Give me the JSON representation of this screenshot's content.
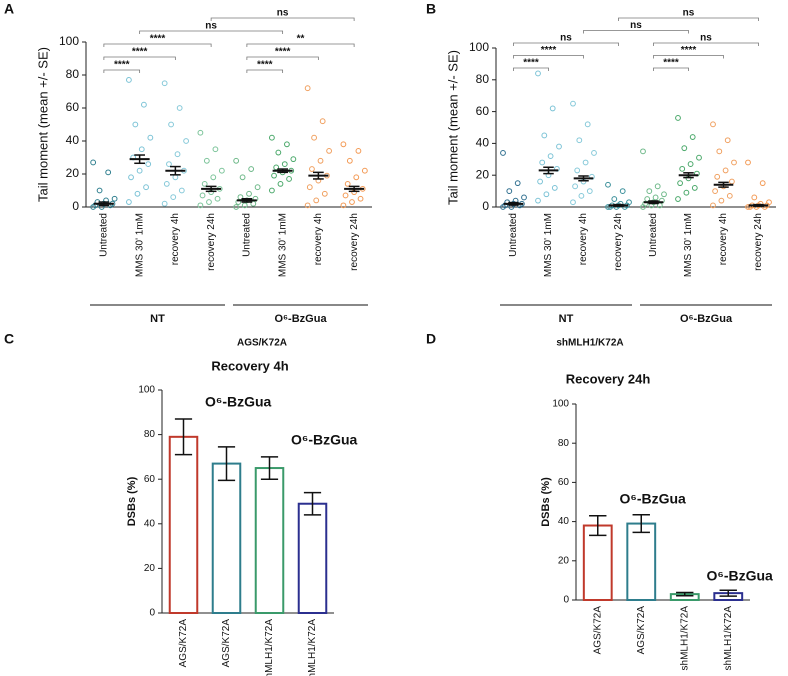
{
  "chart_data": [
    {
      "type": "strip",
      "panel": "A",
      "ylabel": "Tail moment (mean +/- SE)",
      "ylim": [
        0,
        100
      ],
      "yticks": [
        0,
        20,
        40,
        60,
        80,
        100
      ],
      "categories": [
        "Untreated",
        "MMS 30' 1mM",
        "recovery 4h",
        "recovery 24h",
        "Untreated",
        "MMS 30' 1mM",
        "recovery 4h",
        "recovery 24h"
      ],
      "colors": [
        "#2f7f8f",
        "#7cc3d6",
        "#86c9d9",
        "#7cc49a",
        "#6fb98a",
        "#4aa86a",
        "#f0a060",
        "#f39a55"
      ],
      "means": [
        2,
        29,
        22,
        11,
        4,
        22,
        19,
        11
      ],
      "errors": [
        1,
        2.5,
        2.5,
        1.5,
        1,
        1,
        2,
        1.5
      ],
      "points": [
        [
          0,
          0,
          1,
          1,
          2,
          2,
          3,
          4,
          5,
          10,
          21,
          27
        ],
        [
          3,
          8,
          12,
          18,
          22,
          26,
          30,
          35,
          42,
          50,
          62,
          77
        ],
        [
          2,
          6,
          10,
          14,
          18,
          22,
          26,
          32,
          40,
          50,
          60,
          75
        ],
        [
          1,
          3,
          5,
          7,
          9,
          11,
          14,
          18,
          22,
          28,
          35,
          45
        ],
        [
          0,
          1,
          2,
          3,
          4,
          5,
          6,
          8,
          12,
          18,
          23,
          28
        ],
        [
          10,
          14,
          17,
          19,
          21,
          22,
          24,
          26,
          29,
          33,
          38,
          42
        ],
        [
          1,
          4,
          8,
          12,
          16,
          19,
          23,
          28,
          34,
          42,
          52,
          72
        ],
        [
          1,
          3,
          5,
          7,
          9,
          11,
          14,
          18,
          22,
          28,
          34,
          38
        ]
      ],
      "groups": [
        {
          "label": "NT",
          "size": 4
        },
        {
          "label": "O⁶-BzGua",
          "size": 4
        }
      ],
      "comparisons": [
        {
          "from": 0,
          "to": 1,
          "label": "****"
        },
        {
          "from": 0,
          "to": 2,
          "label": "****"
        },
        {
          "from": 0,
          "to": 3,
          "label": "****"
        },
        {
          "from": 4,
          "to": 5,
          "label": "****"
        },
        {
          "from": 4,
          "to": 6,
          "label": "****"
        },
        {
          "from": 4,
          "to": 7,
          "label": "**"
        },
        {
          "from": 1,
          "to": 5,
          "label": "ns"
        },
        {
          "from": 3,
          "to": 7,
          "label": "ns"
        }
      ]
    },
    {
      "type": "strip",
      "panel": "B",
      "ylabel": "Tail moment (mean +/- SE)",
      "ylim": [
        0,
        100
      ],
      "yticks": [
        0,
        20,
        40,
        60,
        80,
        100
      ],
      "categories": [
        "Untreated",
        "MMS 30' 1mM",
        "recovery 4h",
        "recovery 24h",
        "Untreated",
        "MMS 30' 1mM",
        "recovery 4h",
        "recovery 24h"
      ],
      "colors": [
        "#2f6f8f",
        "#7cc3d6",
        "#86c9d9",
        "#3a8f9a",
        "#6fb98a",
        "#4aa86a",
        "#f0a060",
        "#f39a55"
      ],
      "means": [
        2,
        23,
        18,
        1,
        3,
        20,
        14,
        1
      ],
      "errors": [
        0.8,
        2,
        1.5,
        0.5,
        0.8,
        1.5,
        1.5,
        0.5
      ],
      "points": [
        [
          0,
          0,
          1,
          1,
          2,
          2,
          3,
          4,
          6,
          10,
          15,
          34
        ],
        [
          4,
          8,
          12,
          16,
          20,
          24,
          28,
          32,
          38,
          45,
          62,
          84
        ],
        [
          3,
          7,
          10,
          13,
          16,
          19,
          23,
          28,
          34,
          42,
          52,
          65
        ],
        [
          0,
          0,
          0,
          0,
          1,
          1,
          1,
          2,
          3,
          5,
          10,
          14
        ],
        [
          0,
          1,
          1,
          2,
          3,
          4,
          5,
          6,
          8,
          10,
          13,
          35
        ],
        [
          5,
          9,
          12,
          15,
          18,
          21,
          24,
          27,
          31,
          37,
          44,
          56
        ],
        [
          1,
          4,
          7,
          10,
          13,
          16,
          19,
          23,
          28,
          35,
          42,
          52
        ],
        [
          0,
          0,
          0,
          0,
          1,
          1,
          1,
          2,
          3,
          6,
          15,
          28
        ]
      ],
      "groups": [
        {
          "label": "NT",
          "size": 4
        },
        {
          "label": "O⁶-BzGua",
          "size": 4
        }
      ],
      "comparisons": [
        {
          "from": 0,
          "to": 1,
          "label": "****"
        },
        {
          "from": 0,
          "to": 2,
          "label": "****"
        },
        {
          "from": 0,
          "to": 3,
          "label": "ns"
        },
        {
          "from": 4,
          "to": 5,
          "label": "****"
        },
        {
          "from": 4,
          "to": 6,
          "label": "****"
        },
        {
          "from": 4,
          "to": 7,
          "label": "ns"
        },
        {
          "from": 2,
          "to": 5,
          "label": "ns"
        },
        {
          "from": 3,
          "to": 7,
          "label": "ns"
        }
      ]
    },
    {
      "type": "bar",
      "panel": "C",
      "header": "AGS/K72A",
      "title": "Recovery 4h",
      "ylabel": "DSBs (%)",
      "ylim": [
        0,
        100
      ],
      "yticks": [
        0,
        20,
        40,
        60,
        80,
        100
      ],
      "categories": [
        "AGS/K72A",
        "AGS/K72A",
        "shMLH1/K72A",
        "shMLH1/K72A"
      ],
      "values": [
        79,
        67,
        65,
        49
      ],
      "errors": [
        8,
        7.5,
        5,
        5
      ],
      "colors": [
        "#c0392b",
        "#2e7d8c",
        "#3a9a6a",
        "#2b2f8f"
      ],
      "annotations": [
        {
          "text": "O⁶-BzGua",
          "category": 0
        },
        {
          "text": "O⁶-BzGua",
          "category": 2
        }
      ]
    },
    {
      "type": "bar",
      "panel": "D",
      "header": "shMLH1/K72A",
      "title": "Recovery 24h",
      "ylabel": "DSBs (%)",
      "ylim": [
        0,
        100
      ],
      "yticks": [
        0,
        20,
        40,
        60,
        80,
        100
      ],
      "categories": [
        "AGS/K72A",
        "AGS/K72A",
        "shMLH1/K72A",
        "shMLH1/K72A"
      ],
      "values": [
        38,
        39,
        3,
        3.5
      ],
      "errors": [
        5,
        4.5,
        0.8,
        1.5
      ],
      "colors": [
        "#c0392b",
        "#2e7d8c",
        "#3a9a6a",
        "#2b2f8f"
      ],
      "annotations": [
        {
          "text": "O⁶-BzGua",
          "category": 0
        },
        {
          "text": "O⁶-BzGua",
          "category": 2
        }
      ]
    }
  ]
}
